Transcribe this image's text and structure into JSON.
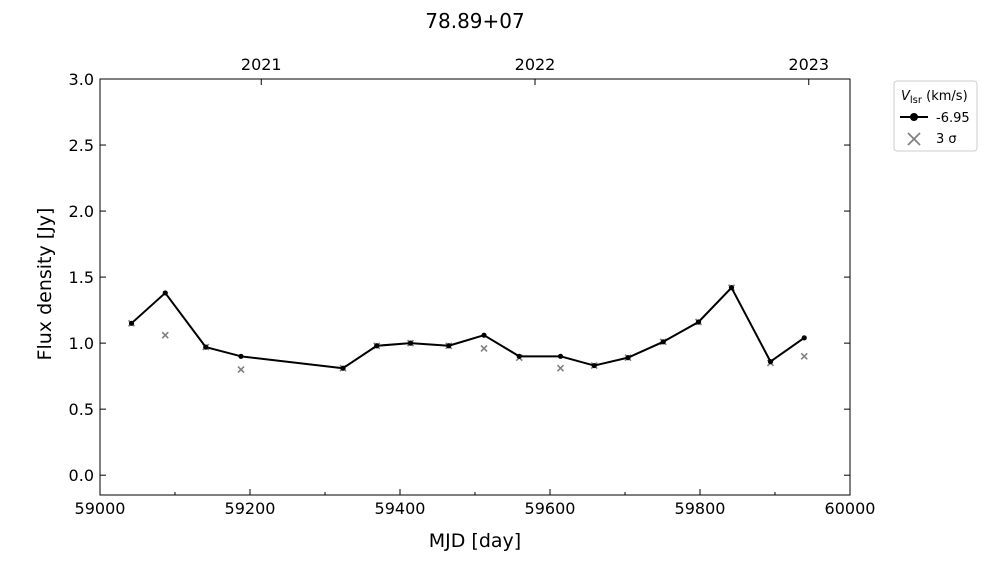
{
  "chart_data": {
    "type": "line",
    "title": "78.89+07",
    "xlabel": "MJD [day]",
    "ylabel": "Flux density [Jy]",
    "xlim": [
      59000,
      60000
    ],
    "ylim": [
      -0.15,
      3.0
    ],
    "x_ticks": [
      59000,
      59200,
      59400,
      59600,
      59800,
      60000
    ],
    "x_minor_ticks": [
      59100,
      59300,
      59500,
      59700,
      59900
    ],
    "y_ticks": [
      0.0,
      0.5,
      1.0,
      1.5,
      2.0,
      2.5,
      3.0
    ],
    "y_tick_labels": [
      "0.0",
      "0.5",
      "1.0",
      "1.5",
      "2.0",
      "2.5",
      "3.0"
    ],
    "top_axis": {
      "ticks": [
        59215,
        59580,
        59945
      ],
      "labels": [
        "2021",
        "2022",
        "2023"
      ]
    },
    "grid": false,
    "legend": {
      "placement": "outside-top-right",
      "title_main": "V",
      "title_sub": "lsr",
      "title_unit": " (km/s)",
      "entries": [
        {
          "label": "-6.95",
          "marker": "circle-line",
          "color": "#000000"
        },
        {
          "label": "3 σ",
          "marker": "x",
          "color": "#808080"
        }
      ]
    },
    "series": [
      {
        "name": "-6.95",
        "color": "#000000",
        "x": [
          59042,
          59087,
          59141,
          59188,
          59324,
          59369,
          59414,
          59465,
          59512,
          59559,
          59614,
          59659,
          59704,
          59751,
          59798,
          59842,
          59894,
          59939
        ],
        "y": [
          1.15,
          1.38,
          0.97,
          0.9,
          0.81,
          0.98,
          1.0,
          0.98,
          1.06,
          0.9,
          0.9,
          0.83,
          0.89,
          1.01,
          1.16,
          1.42,
          0.86,
          1.04
        ]
      }
    ],
    "sigma3": {
      "name": "3 σ",
      "color": "#808080",
      "x": [
        59042,
        59087,
        59141,
        59188,
        59324,
        59369,
        59414,
        59465,
        59512,
        59559,
        59614,
        59659,
        59704,
        59751,
        59798,
        59842,
        59894,
        59939
      ],
      "y": [
        1.15,
        1.06,
        0.97,
        0.8,
        0.81,
        0.98,
        1.0,
        0.98,
        0.96,
        0.89,
        0.81,
        0.83,
        0.89,
        1.01,
        1.16,
        1.42,
        0.85,
        0.9
      ]
    }
  }
}
